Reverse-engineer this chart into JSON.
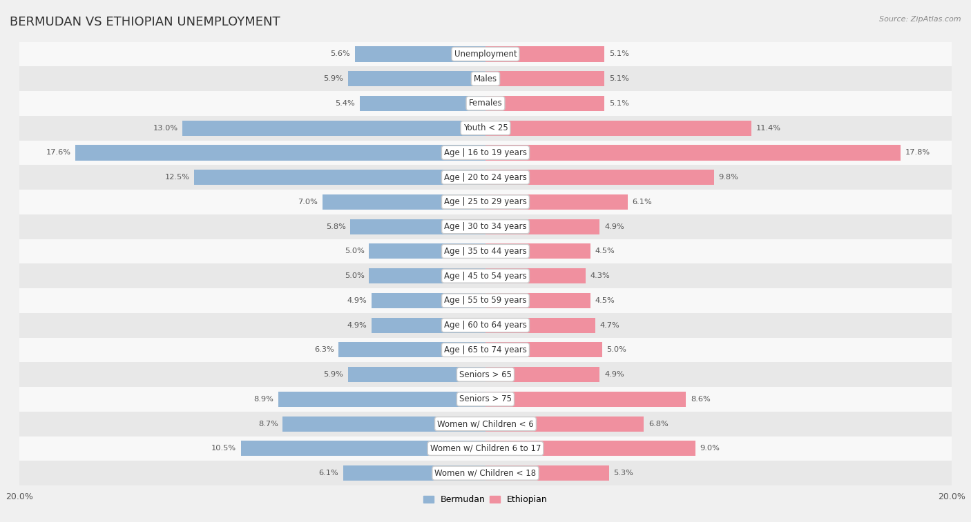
{
  "title": "BERMUDAN VS ETHIOPIAN UNEMPLOYMENT",
  "source": "Source: ZipAtlas.com",
  "categories": [
    "Unemployment",
    "Males",
    "Females",
    "Youth < 25",
    "Age | 16 to 19 years",
    "Age | 20 to 24 years",
    "Age | 25 to 29 years",
    "Age | 30 to 34 years",
    "Age | 35 to 44 years",
    "Age | 45 to 54 years",
    "Age | 55 to 59 years",
    "Age | 60 to 64 years",
    "Age | 65 to 74 years",
    "Seniors > 65",
    "Seniors > 75",
    "Women w/ Children < 6",
    "Women w/ Children 6 to 17",
    "Women w/ Children < 18"
  ],
  "bermudan": [
    5.6,
    5.9,
    5.4,
    13.0,
    17.6,
    12.5,
    7.0,
    5.8,
    5.0,
    5.0,
    4.9,
    4.9,
    6.3,
    5.9,
    8.9,
    8.7,
    10.5,
    6.1
  ],
  "ethiopian": [
    5.1,
    5.1,
    5.1,
    11.4,
    17.8,
    9.8,
    6.1,
    4.9,
    4.5,
    4.3,
    4.5,
    4.7,
    5.0,
    4.9,
    8.6,
    6.8,
    9.0,
    5.3
  ],
  "bermudan_color": "#92b4d4",
  "ethiopian_color": "#f0909f",
  "bar_height": 0.62,
  "xlim": 20.0,
  "background_color": "#f0f0f0",
  "row_bg_even": "#e8e8e8",
  "row_bg_odd": "#f8f8f8",
  "label_bg": "#ffffff",
  "axis_label_left": "20.0%",
  "axis_label_right": "20.0%"
}
